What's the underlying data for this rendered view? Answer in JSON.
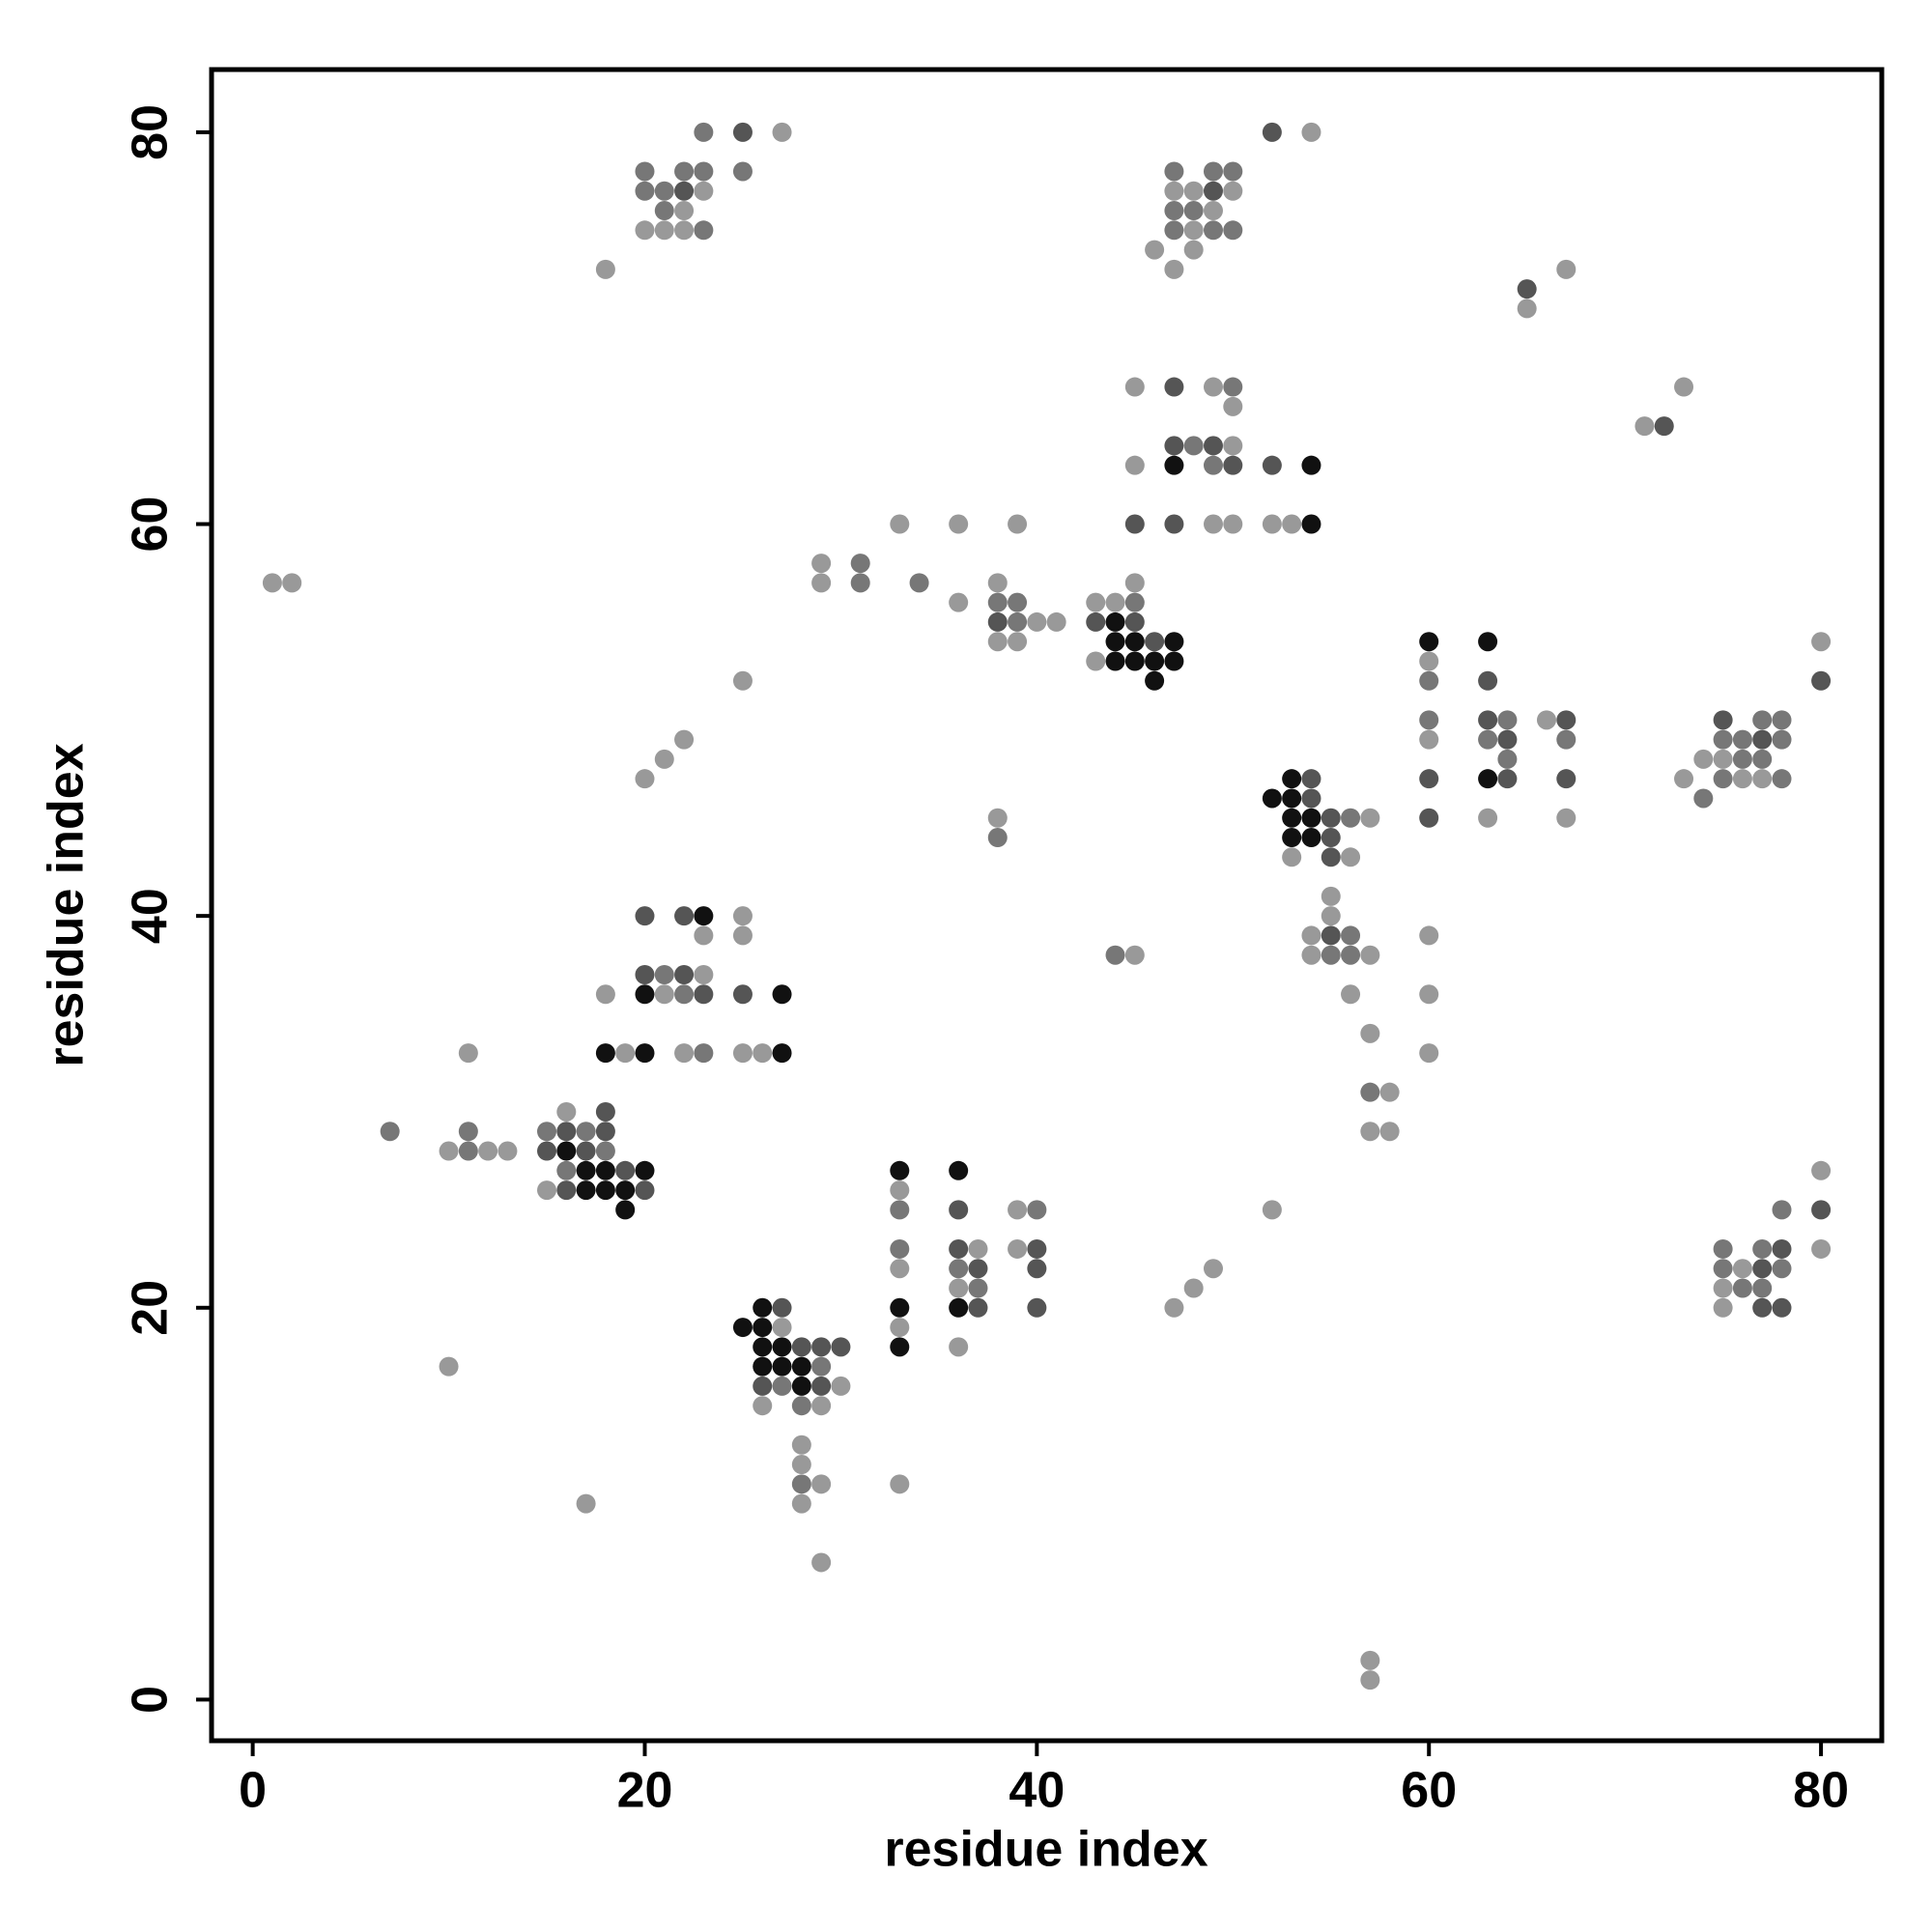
{
  "chart_data": {
    "type": "scatter",
    "x_label": "residue index",
    "y_label": "residue index",
    "xlim": [
      -2.1,
      83.1
    ],
    "ylim": [
      -2.1,
      83.2
    ],
    "xticks": [
      0,
      20,
      40,
      60,
      80
    ],
    "yticks": [
      0,
      20,
      40,
      60,
      80
    ],
    "grid": false,
    "series": [
      {
        "color": "#999999",
        "x": [
          27,
          54,
          23,
          47,
          48,
          50,
          22,
          49,
          20,
          21,
          22,
          48,
          46,
          48,
          18,
          47,
          67,
          65,
          45,
          49,
          73,
          50,
          71,
          50,
          45,
          33,
          36,
          39,
          49,
          50,
          52,
          53,
          29,
          1,
          2,
          29,
          38,
          45,
          36,
          43,
          44,
          40,
          41,
          38,
          39,
          80,
          43,
          60,
          25,
          66,
          22,
          60,
          21,
          74,
          75,
          20,
          73,
          76,
          77,
          38,
          57,
          63,
          67,
          53,
          56,
          55,
          25,
          55,
          23,
          25,
          54,
          60,
          45,
          54,
          57,
          23,
          18,
          21,
          56,
          60,
          57,
          11,
          19,
          22,
          25,
          26,
          60,
          58,
          16,
          57,
          58,
          10,
          12,
          13,
          80,
          15,
          33,
          39,
          52,
          37,
          39,
          80,
          33,
          49,
          76,
          36,
          48,
          75,
          47,
          75,
          27,
          33,
          36,
          10,
          30,
          26,
          29,
          28,
          28,
          29,
          33,
          17,
          28,
          29,
          57,
          57
        ],
        "values": [
          80,
          80,
          77,
          77,
          77,
          77,
          76,
          76,
          75,
          75,
          75,
          75,
          74,
          74,
          73,
          73,
          73,
          71,
          67,
          67,
          67,
          66,
          65,
          64,
          63,
          60,
          60,
          60,
          60,
          60,
          60,
          60,
          58,
          57,
          57,
          57,
          57,
          57,
          56,
          56,
          56,
          55,
          55,
          54,
          54,
          54,
          53,
          53,
          52,
          50,
          49,
          49,
          48,
          48,
          48,
          47,
          47,
          47,
          47,
          45,
          45,
          45,
          45,
          43,
          43,
          41,
          40,
          40,
          39,
          39,
          39,
          39,
          38,
          38,
          38,
          37,
          36,
          36,
          36,
          36,
          34,
          33,
          33,
          33,
          33,
          33,
          33,
          31,
          30,
          29,
          29,
          28,
          28,
          28,
          27,
          26,
          26,
          25,
          25,
          23,
          23,
          23,
          22,
          22,
          22,
          21,
          21,
          21,
          20,
          20,
          19,
          19,
          18,
          17,
          16,
          15,
          15,
          13,
          12,
          11,
          11,
          10,
          10,
          7,
          2,
          1
        ]
      },
      {
        "color": "#777777",
        "x": [
          23,
          20,
          22,
          23,
          25,
          47,
          49,
          50,
          20,
          21,
          21,
          47,
          48,
          23,
          47,
          49,
          50,
          50,
          48,
          49,
          31,
          31,
          34,
          38,
          39,
          45,
          39,
          60,
          60,
          64,
          77,
          78,
          63,
          67,
          75,
          76,
          78,
          64,
          76,
          77,
          75,
          78,
          74,
          56,
          38,
          56,
          55,
          56,
          44,
          21,
          22,
          23,
          57,
          7,
          11,
          15,
          17,
          11,
          18,
          16,
          33,
          40,
          78,
          33,
          75,
          77,
          36,
          75,
          78,
          37,
          76,
          77,
          29,
          27,
          28,
          28
        ],
        "values": [
          80,
          78,
          78,
          78,
          78,
          78,
          78,
          78,
          77,
          77,
          76,
          76,
          76,
          75,
          75,
          75,
          75,
          67,
          64,
          63,
          58,
          57,
          57,
          56,
          56,
          56,
          55,
          52,
          50,
          50,
          50,
          50,
          49,
          49,
          49,
          49,
          49,
          48,
          48,
          48,
          47,
          47,
          46,
          45,
          44,
          39,
          38,
          38,
          38,
          37,
          36,
          33,
          31,
          29,
          29,
          29,
          29,
          28,
          28,
          27,
          25,
          25,
          25,
          23,
          23,
          23,
          22,
          22,
          22,
          21,
          21,
          21,
          17,
          16,
          15,
          11
        ]
      },
      {
        "color": "#555555",
        "x": [
          25,
          52,
          22,
          49,
          65,
          47,
          72,
          47,
          49,
          50,
          52,
          45,
          47,
          38,
          43,
          45,
          46,
          63,
          80,
          63,
          67,
          75,
          64,
          77,
          54,
          60,
          64,
          67,
          54,
          55,
          60,
          55,
          55,
          20,
          22,
          55,
          20,
          22,
          23,
          25,
          18,
          16,
          18,
          15,
          17,
          19,
          16,
          20,
          36,
          80,
          36,
          40,
          78,
          37,
          40,
          77,
          37,
          40,
          77,
          78,
          27,
          28,
          29,
          30,
          26,
          29
        ],
        "values": [
          80,
          80,
          77,
          77,
          72,
          67,
          65,
          64,
          64,
          63,
          63,
          60,
          60,
          55,
          55,
          55,
          54,
          52,
          52,
          50,
          50,
          50,
          49,
          49,
          47,
          47,
          47,
          47,
          46,
          45,
          45,
          44,
          43,
          40,
          40,
          39,
          37,
          37,
          36,
          36,
          30,
          29,
          29,
          28,
          28,
          27,
          26,
          26,
          25,
          25,
          23,
          23,
          23,
          22,
          22,
          22,
          20,
          20,
          20,
          20,
          20,
          18,
          18,
          18,
          16,
          16
        ]
      },
      {
        "color": "#111111",
        "x": [
          47,
          54,
          54,
          44,
          44,
          45,
          47,
          60,
          63,
          44,
          45,
          46,
          47,
          46,
          53,
          63,
          52,
          53,
          53,
          54,
          53,
          54,
          23,
          20,
          27,
          18,
          20,
          27,
          16,
          17,
          18,
          20,
          33,
          36,
          17,
          18,
          19,
          19,
          33,
          36,
          26,
          25,
          26,
          26,
          27,
          33,
          26,
          27,
          28,
          28
        ],
        "values": [
          63,
          63,
          60,
          55,
          54,
          54,
          54,
          54,
          54,
          53,
          53,
          53,
          53,
          52,
          47,
          47,
          46,
          46,
          45,
          45,
          44,
          44,
          40,
          36,
          36,
          33,
          33,
          33,
          28,
          27,
          27,
          27,
          27,
          27,
          26,
          26,
          26,
          25,
          20,
          20,
          20,
          19,
          19,
          18,
          18,
          18,
          17,
          17,
          17,
          16
        ]
      }
    ]
  }
}
